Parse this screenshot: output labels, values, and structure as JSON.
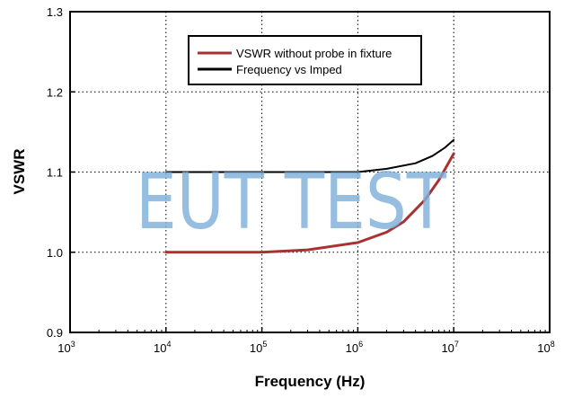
{
  "chart_data": {
    "type": "line",
    "xscale": "log",
    "xlabel": "Frequency (Hz)",
    "ylabel": "VSWR",
    "xlim": [
      1000,
      100000000
    ],
    "ylim": [
      0.9,
      1.3
    ],
    "grid": true,
    "legend_position": "top-center",
    "x_ticks": [
      {
        "base": "10",
        "exp": "3",
        "value": 1000
      },
      {
        "base": "10",
        "exp": "4",
        "value": 10000
      },
      {
        "base": "10",
        "exp": "5",
        "value": 100000
      },
      {
        "base": "10",
        "exp": "6",
        "value": 1000000
      },
      {
        "base": "10",
        "exp": "7",
        "value": 10000000
      },
      {
        "base": "10",
        "exp": "8",
        "value": 100000000
      }
    ],
    "y_ticks": [
      {
        "label": "0.9",
        "value": 0.9
      },
      {
        "label": "1.0",
        "value": 1.0
      },
      {
        "label": "1.1",
        "value": 1.1
      },
      {
        "label": "1.2",
        "value": 1.2
      },
      {
        "label": "1.3",
        "value": 1.3
      }
    ],
    "series": [
      {
        "name": "VSWR without probe in fixture",
        "color": "#a83232",
        "x": [
          10000,
          30000,
          100000,
          300000,
          1000000,
          2000000,
          3000000,
          5000000,
          7000000,
          10000000
        ],
        "y": [
          1.0,
          1.0,
          1.0,
          1.003,
          1.012,
          1.025,
          1.038,
          1.065,
          1.09,
          1.123
        ]
      },
      {
        "name": "Frequency vs Imped",
        "color": "#000000",
        "x": [
          10000,
          100000,
          1000000,
          2000000,
          4000000,
          6000000,
          8000000,
          10000000
        ],
        "y": [
          1.1,
          1.1,
          1.1,
          1.104,
          1.111,
          1.12,
          1.13,
          1.14
        ]
      }
    ]
  },
  "watermark": "EUT TEST"
}
